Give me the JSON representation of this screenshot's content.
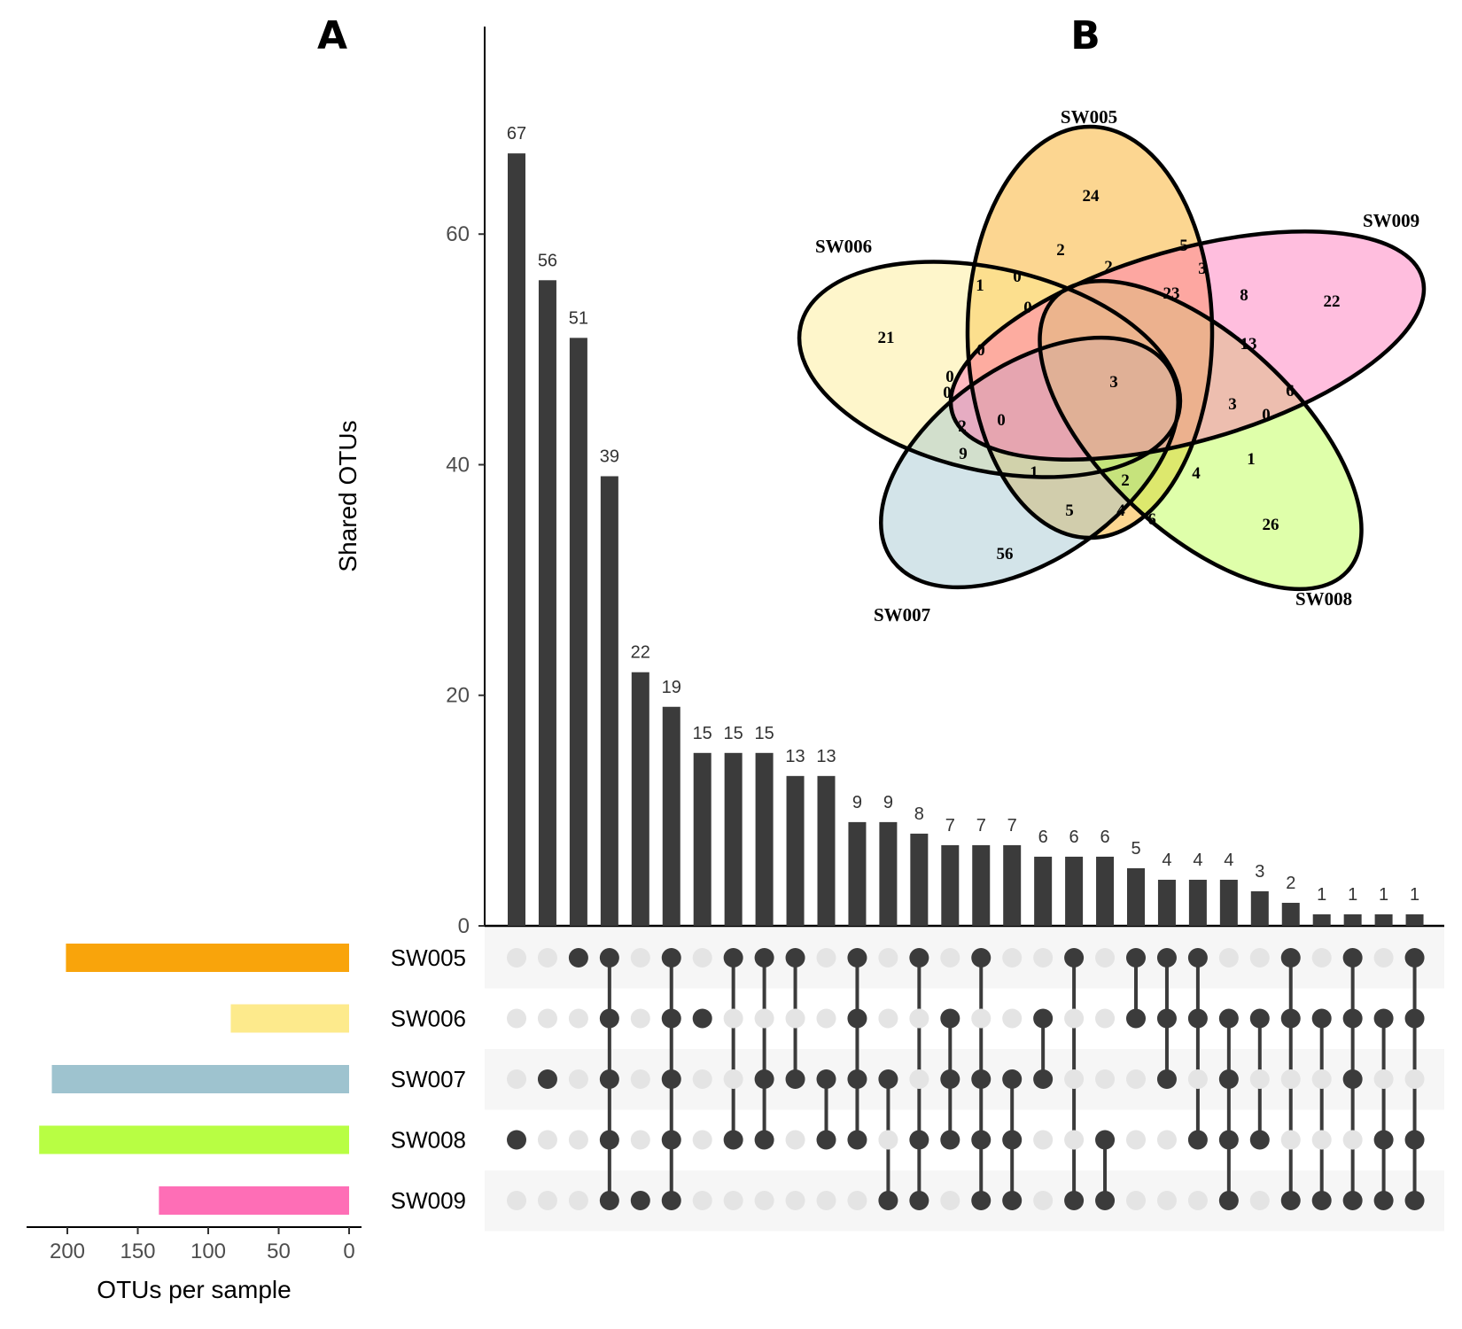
{
  "panels": {
    "a": "A",
    "b": "B"
  },
  "chart_data": [
    {
      "type": "bar",
      "ylabel": "Shared OTUs",
      "ylim": [
        0,
        78
      ],
      "yticks": [
        0,
        20,
        40,
        60
      ],
      "sets": [
        "SW005",
        "SW006",
        "SW007",
        "SW008",
        "SW009"
      ],
      "values": [
        67,
        56,
        51,
        39,
        22,
        19,
        15,
        15,
        15,
        13,
        13,
        9,
        9,
        8,
        7,
        7,
        7,
        6,
        6,
        6,
        5,
        4,
        4,
        4,
        3,
        2,
        1,
        1,
        1,
        1
      ],
      "value_labels": [
        "67",
        "56",
        "51",
        "39",
        "22",
        "19",
        "15",
        "15",
        "15",
        "13",
        "13",
        "9",
        "9",
        "8",
        "7",
        "7",
        "7",
        "6",
        "6",
        "6",
        "5",
        "4",
        "4",
        "4",
        "3",
        "2",
        "1",
        "1",
        "1",
        "1"
      ],
      "intersections": [
        [
          3
        ],
        [
          2
        ],
        [
          0
        ],
        [
          0,
          1,
          2,
          3,
          4
        ],
        [
          4
        ],
        [
          0,
          1,
          2,
          3,
          4
        ],
        [
          1
        ],
        [
          0,
          3
        ],
        [
          0,
          2,
          3
        ],
        [
          0,
          2
        ],
        [
          2,
          3
        ],
        [
          0,
          1,
          2,
          3
        ],
        [
          2,
          4
        ],
        [
          0,
          3,
          4
        ],
        [
          1,
          2,
          3
        ],
        [
          0,
          2,
          3,
          4
        ],
        [
          2,
          3,
          4
        ],
        [
          1,
          2
        ],
        [
          0,
          4
        ],
        [
          3,
          4
        ],
        [
          0,
          1
        ],
        [
          0,
          1,
          2
        ],
        [
          0,
          1,
          3
        ],
        [
          1,
          2,
          3,
          4
        ],
        [
          1,
          3
        ],
        [
          0,
          1,
          4
        ],
        [
          1,
          4
        ],
        [
          0,
          1,
          2,
          4
        ],
        [
          1,
          3,
          4
        ],
        [
          0,
          1,
          3,
          4
        ]
      ]
    },
    {
      "type": "bar",
      "orientation": "horizontal",
      "xlabel": "OTUs per sample",
      "xlim": [
        230,
        0
      ],
      "xticks": [
        "200",
        "150",
        "100",
        "50",
        "0"
      ],
      "categories": [
        "SW005",
        "SW006",
        "SW007",
        "SW008",
        "SW009"
      ],
      "values": [
        201,
        84,
        211,
        220,
        135
      ],
      "colors": [
        "#F9A40B",
        "#FDEA8C",
        "#9EC3CF",
        "#B8FE43",
        "#FE6EB6"
      ]
    },
    {
      "type": "venn",
      "sets": [
        "SW005",
        "SW006",
        "SW007",
        "SW008",
        "SW009"
      ],
      "colors": [
        "#F9A40B",
        "#FDEA8C",
        "#9EC3CF",
        "#B8FE43",
        "#FE6EB6"
      ],
      "region_values": [
        "24",
        "2",
        "5",
        "3",
        "8",
        "1",
        "0",
        "0",
        "23",
        "22",
        "2",
        "21",
        "0",
        "13",
        "0",
        "3",
        "0",
        "3",
        "6",
        "2",
        "0",
        "0",
        "9",
        "1",
        "1",
        "2",
        "4",
        "26",
        "5",
        "4",
        "6",
        "56"
      ]
    }
  ]
}
